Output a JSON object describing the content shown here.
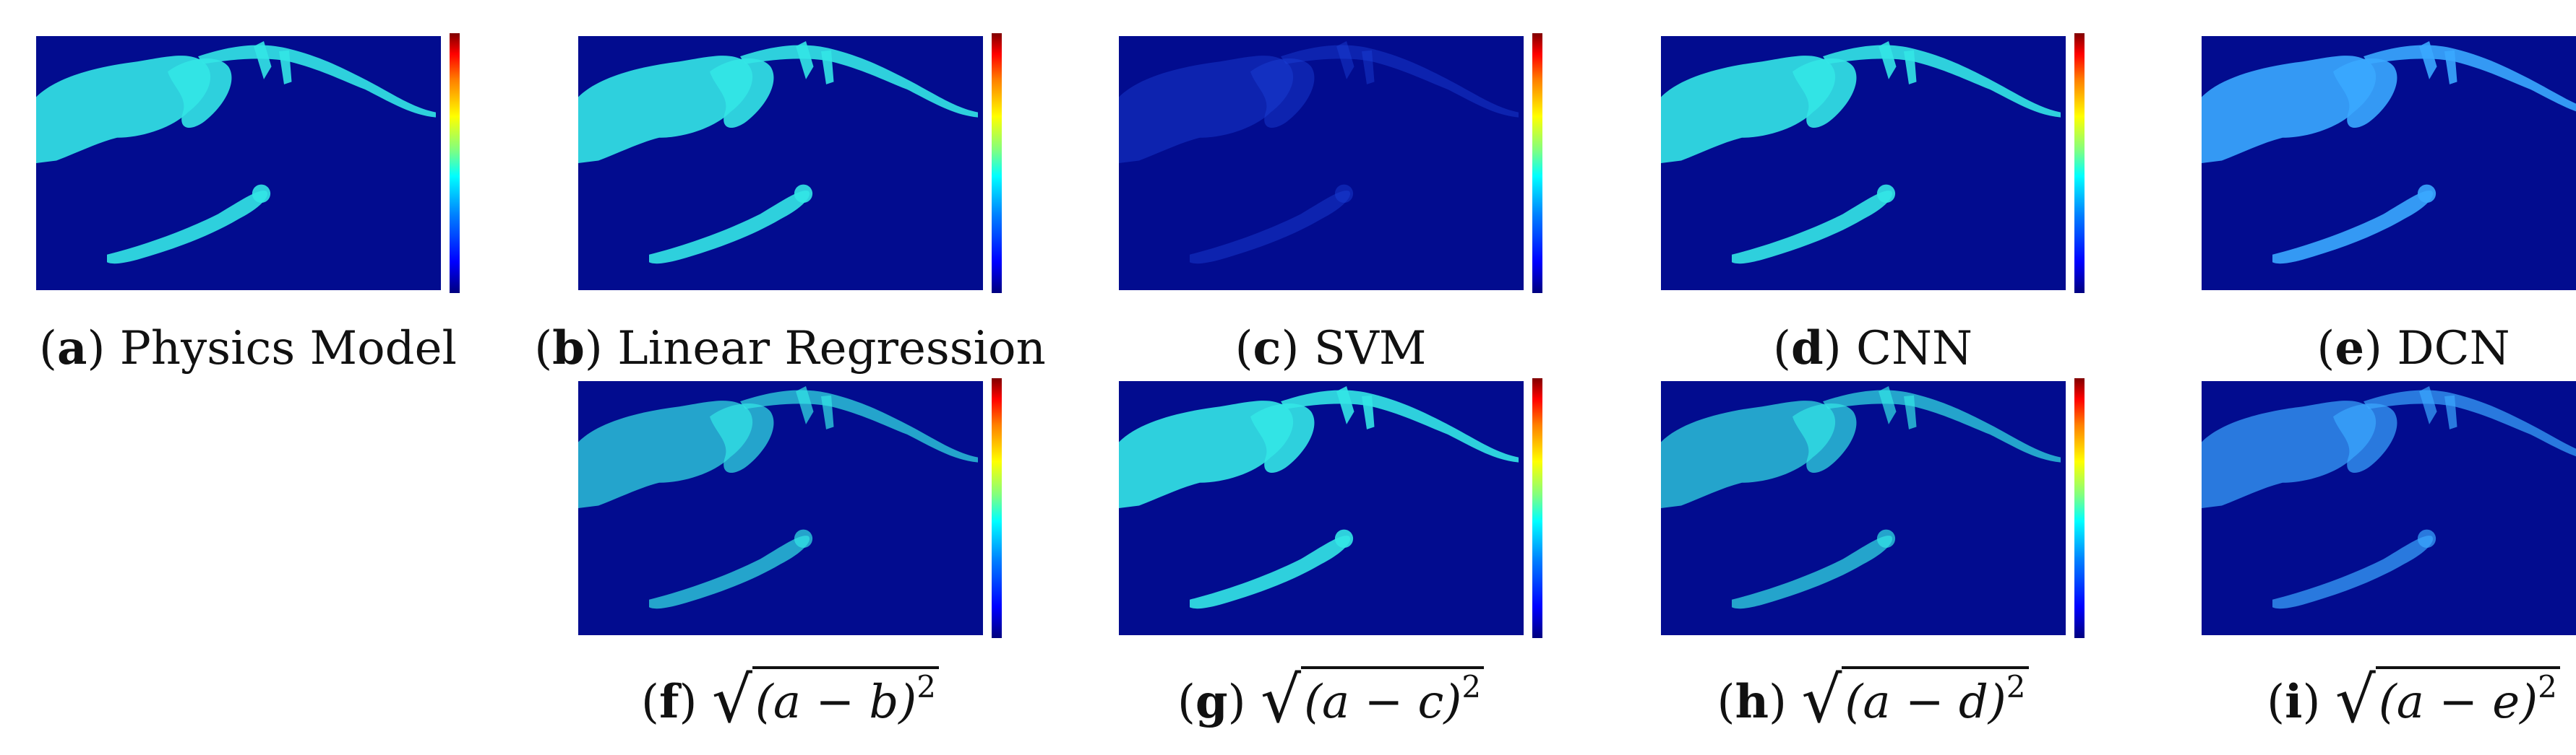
{
  "panels": [
    {
      "id": "a",
      "letter": "a",
      "label": "Physics Model",
      "variant": "bright"
    },
    {
      "id": "b",
      "letter": "b",
      "label": "Linear Regression",
      "variant": "bright"
    },
    {
      "id": "c",
      "letter": "c",
      "label": "SVM",
      "variant": "dim"
    },
    {
      "id": "d",
      "letter": "d",
      "label": "CNN",
      "variant": "bright"
    },
    {
      "id": "e",
      "letter": "e",
      "label": "DCN",
      "variant": "mid"
    },
    {
      "id": "f",
      "letter": "f",
      "expr": "(a − b)",
      "exp": "2",
      "variant": "diff"
    },
    {
      "id": "g",
      "letter": "g",
      "expr": "(a − c)",
      "exp": "2",
      "variant": "bright"
    },
    {
      "id": "h",
      "letter": "h",
      "expr": "(a − d)",
      "exp": "2",
      "variant": "diff"
    },
    {
      "id": "i",
      "letter": "i",
      "expr": "(a − e)",
      "exp": "2",
      "variant": "diffmid"
    }
  ],
  "colors": {
    "background_map": "#020c8f",
    "feature_bright": "#33e6e6",
    "feature_mid": "#3aa8ff",
    "feature_dim": "#1a40d8"
  }
}
